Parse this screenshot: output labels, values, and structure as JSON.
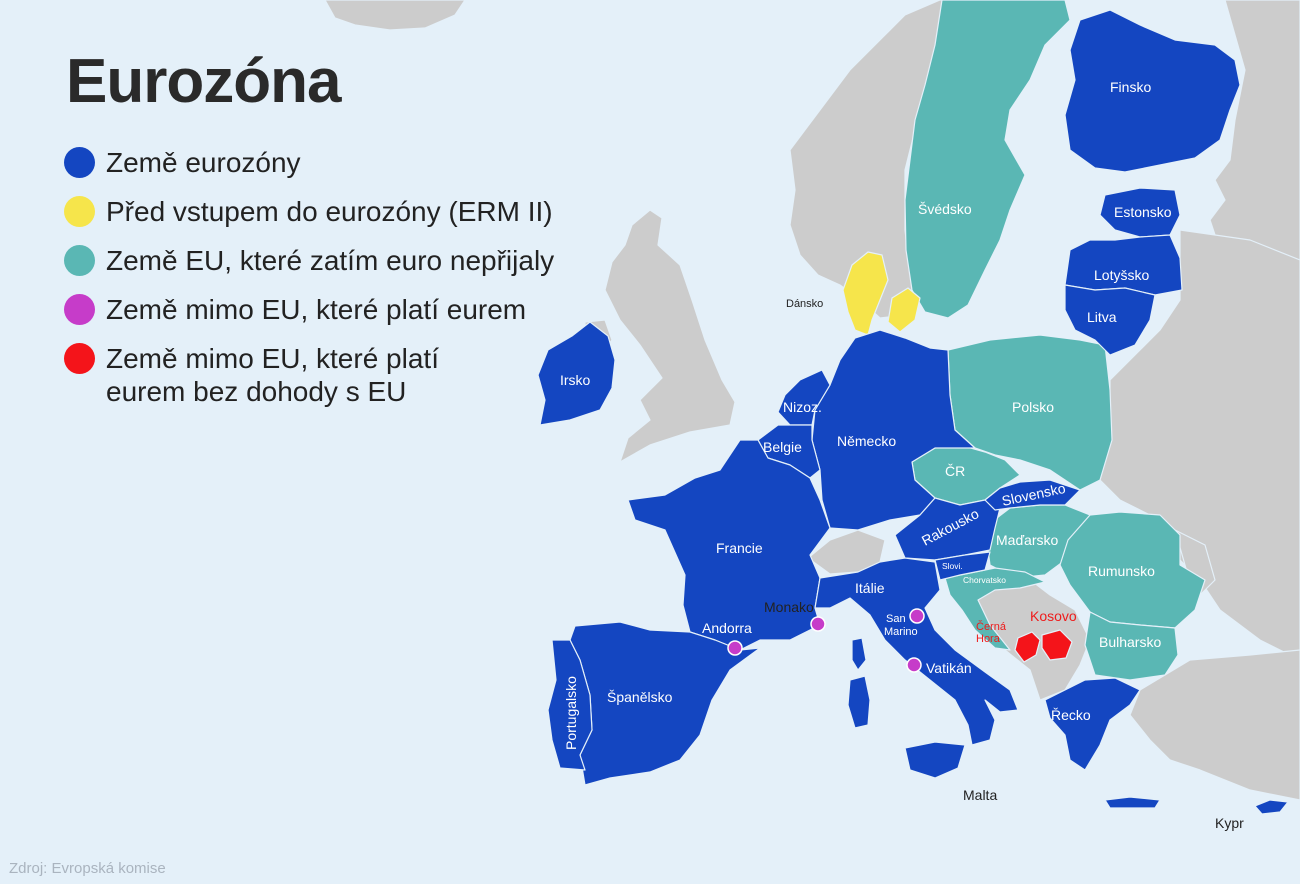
{
  "map": {
    "title": "Eurozóna",
    "source": "Zdroj: Evropská komise",
    "colors": {
      "eurozone": "#1446c1",
      "erm2": "#f6e54b",
      "eu_non_euro": "#5ab7b4",
      "non_eu_agreement": "#c63cc9",
      "non_eu_no_agreement": "#f4141a",
      "other_land": "#cccccc",
      "sea": "#e4f0f9"
    },
    "legend": [
      {
        "label": "Země eurozóny",
        "color": "#1446c1"
      },
      {
        "label": "Před vstupem do eurozóny (ERM II)",
        "color": "#f6e54b"
      },
      {
        "label": "Země EU, které zatím euro nepřijaly",
        "color": "#5ab7b4"
      },
      {
        "label": "Země mimo EU, které platí eurem",
        "color": "#c63cc9"
      },
      {
        "label": "Země mimo EU, které platí eurem bez dohody s EU",
        "color": "#f4141a"
      }
    ],
    "labels": {
      "finsko": "Finsko",
      "svedsko": "Švédsko",
      "estonsko": "Estonsko",
      "lotysko": "Lotyšsko",
      "litva": "Litva",
      "dansko": "Dánsko",
      "irsko": "Irsko",
      "polsko": "Polsko",
      "nizoz": "Nizoz.",
      "belgie": "Belgie",
      "nemecko": "Německo",
      "cr": "ČR",
      "slovensko": "Slovensko",
      "rakousko": "Rakousko",
      "madarsko": "Maďarsko",
      "francie": "Francie",
      "slovi": "Slovi.",
      "chorvatsko": "Chorvatsko",
      "rumunsko": "Rumunsko",
      "italie": "Itálie",
      "monako": "Monako",
      "san_marino_1": "San",
      "san_marino_2": "Marino",
      "andorra": "Andorra",
      "cerna_hora_1": "Černá",
      "cerna_hora_2": "Hora",
      "kosovo": "Kosovo",
      "bulharsko": "Bulharsko",
      "vatikan": "Vatikán",
      "portugalsko": "Portugalsko",
      "spanelsko": "Španělsko",
      "recko": "Řecko",
      "malta": "Malta",
      "kypr": "Kypr"
    }
  }
}
